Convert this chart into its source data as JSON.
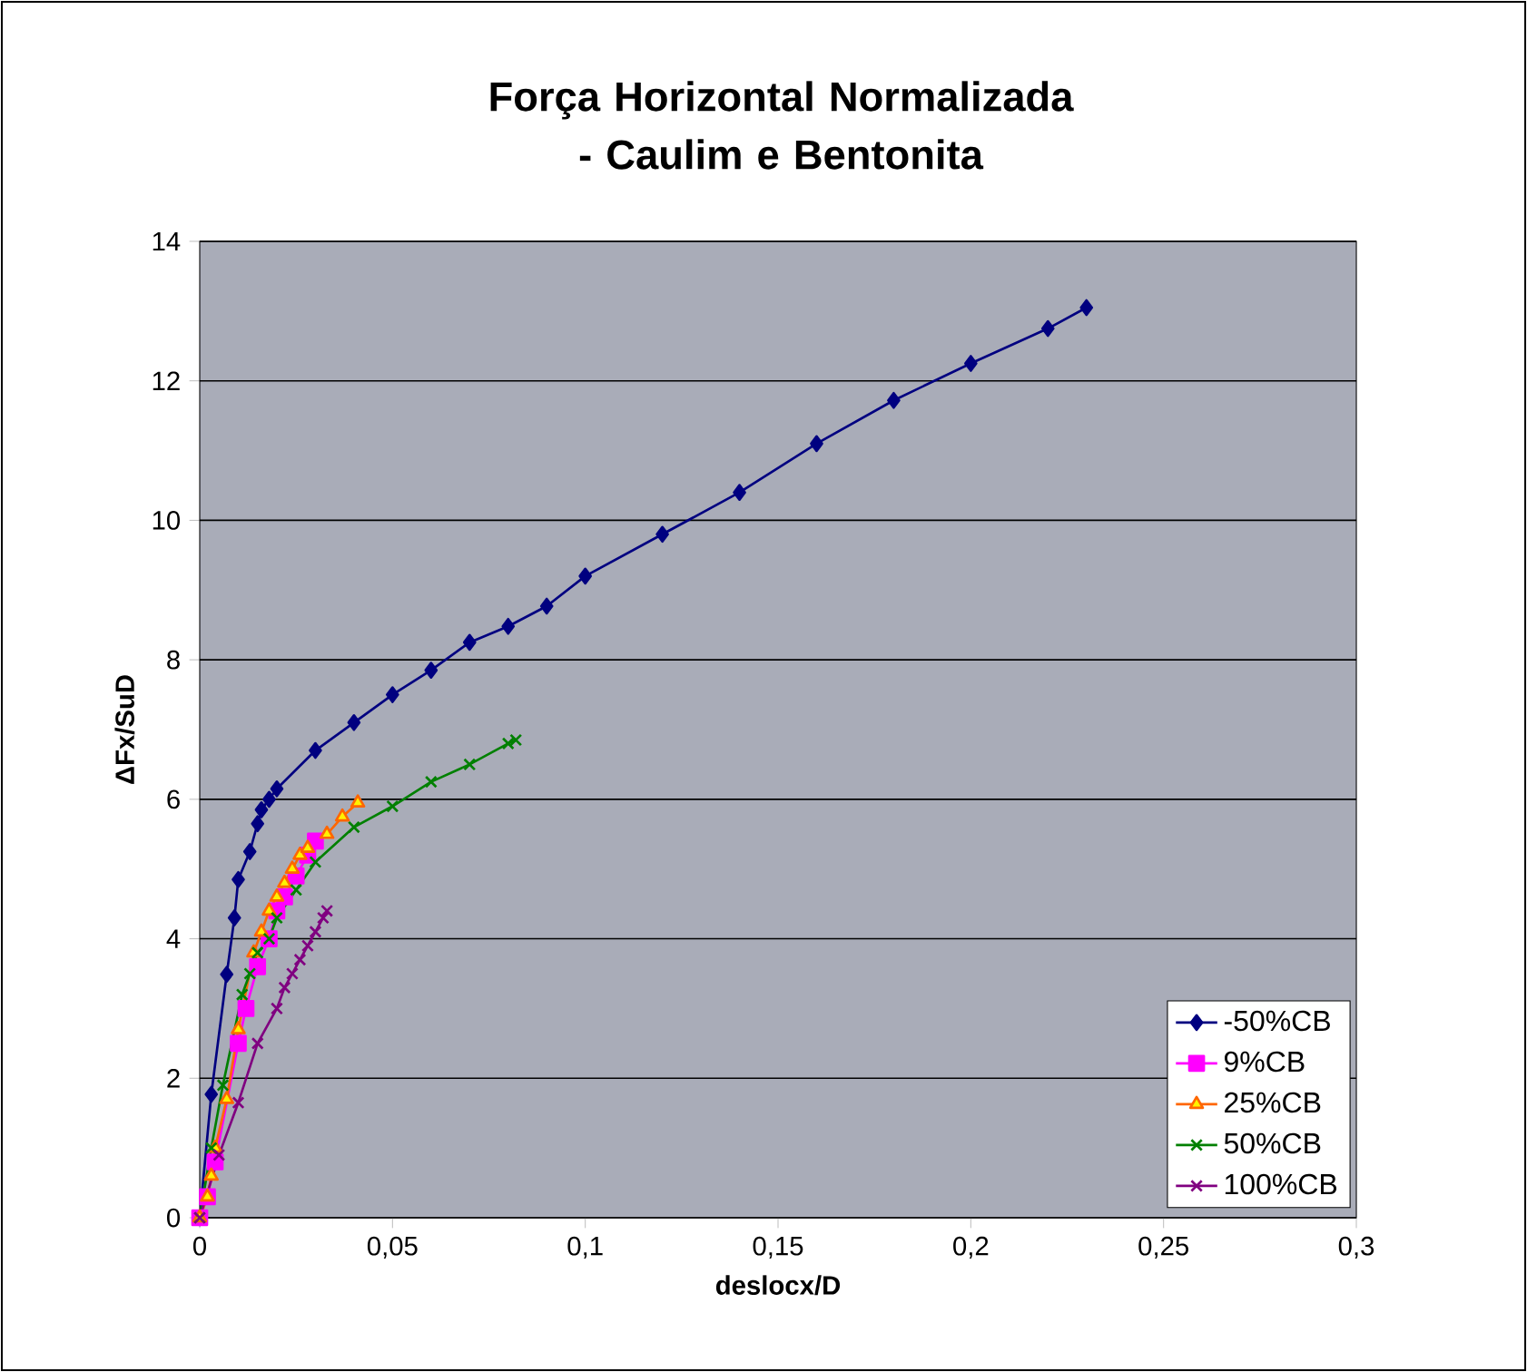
{
  "chart_data": {
    "type": "line",
    "title": "Força Horizontal Normalizada - Caulim e Bentonita",
    "xlabel": "deslocx/D",
    "ylabel": "ΔFx/SuD",
    "xlim": [
      0,
      0.3
    ],
    "ylim": [
      0,
      14
    ],
    "xticks": [
      0,
      {
        "value": 0.05,
        "label": "0,05"
      },
      {
        "value": 0.1,
        "label": "0,1"
      },
      {
        "value": 0.15,
        "label": "0,15"
      },
      {
        "value": 0.2,
        "label": "0,2"
      },
      {
        "value": 0.25,
        "label": "0,25"
      },
      {
        "value": 0.3,
        "label": "0,3"
      }
    ],
    "yticks": [
      0,
      2,
      4,
      6,
      8,
      10,
      12,
      14
    ],
    "grid": "y",
    "legend": "bottom right",
    "series": [
      {
        "name": "-50%CB",
        "color": "#000080",
        "marker": "diamond",
        "x": [
          0,
          0.003,
          0.007,
          0.009,
          0.01,
          0.013,
          0.015,
          0.016,
          0.018,
          0.02,
          0.03,
          0.04,
          0.05,
          0.06,
          0.07,
          0.08,
          0.09,
          0.1,
          0.12,
          0.14,
          0.16,
          0.18,
          0.2,
          0.22,
          0.23
        ],
        "values": [
          0,
          1.77,
          3.49,
          4.3,
          4.85,
          5.25,
          5.65,
          5.85,
          6.0,
          6.15,
          6.7,
          7.1,
          7.5,
          7.85,
          8.25,
          8.48,
          8.77,
          9.2,
          9.8,
          10.4,
          11.1,
          11.72,
          12.25,
          12.75,
          13.05
        ]
      },
      {
        "name": "9%CB",
        "color": "#ff00ff",
        "marker": "square",
        "x": [
          0,
          0.002,
          0.004,
          0.01,
          0.012,
          0.015,
          0.018,
          0.02,
          0.022,
          0.025,
          0.028,
          0.03
        ],
        "values": [
          0,
          0.3,
          0.8,
          2.5,
          3.0,
          3.6,
          4.0,
          4.4,
          4.6,
          4.9,
          5.2,
          5.4
        ]
      },
      {
        "name": "25%CB",
        "color": "#ff6600",
        "marker": "triangle",
        "x": [
          0,
          0.002,
          0.003,
          0.004,
          0.007,
          0.01,
          0.014,
          0.016,
          0.018,
          0.02,
          0.022,
          0.024,
          0.026,
          0.028,
          0.033,
          0.037,
          0.041
        ],
        "values": [
          0,
          0.3,
          0.6,
          1.0,
          1.7,
          2.7,
          3.8,
          4.1,
          4.4,
          4.6,
          4.8,
          5.0,
          5.2,
          5.3,
          5.5,
          5.75,
          5.95
        ]
      },
      {
        "name": "50%CB",
        "color": "#008000",
        "marker": "cross",
        "x": [
          0,
          0.003,
          0.006,
          0.011,
          0.013,
          0.015,
          0.018,
          0.02,
          0.025,
          0.03,
          0.04,
          0.05,
          0.06,
          0.07,
          0.08,
          0.082
        ],
        "values": [
          0,
          1.0,
          1.9,
          3.2,
          3.5,
          3.8,
          4.0,
          4.3,
          4.7,
          5.1,
          5.6,
          5.9,
          6.25,
          6.5,
          6.8,
          6.85
        ]
      },
      {
        "name": "100%CB",
        "color": "#800080",
        "marker": "cross",
        "x": [
          0,
          0.005,
          0.01,
          0.015,
          0.02,
          0.022,
          0.024,
          0.026,
          0.028,
          0.03,
          0.032,
          0.033
        ],
        "values": [
          0,
          0.9,
          1.65,
          2.5,
          3.0,
          3.3,
          3.5,
          3.7,
          3.9,
          4.1,
          4.3,
          4.4
        ]
      }
    ]
  }
}
